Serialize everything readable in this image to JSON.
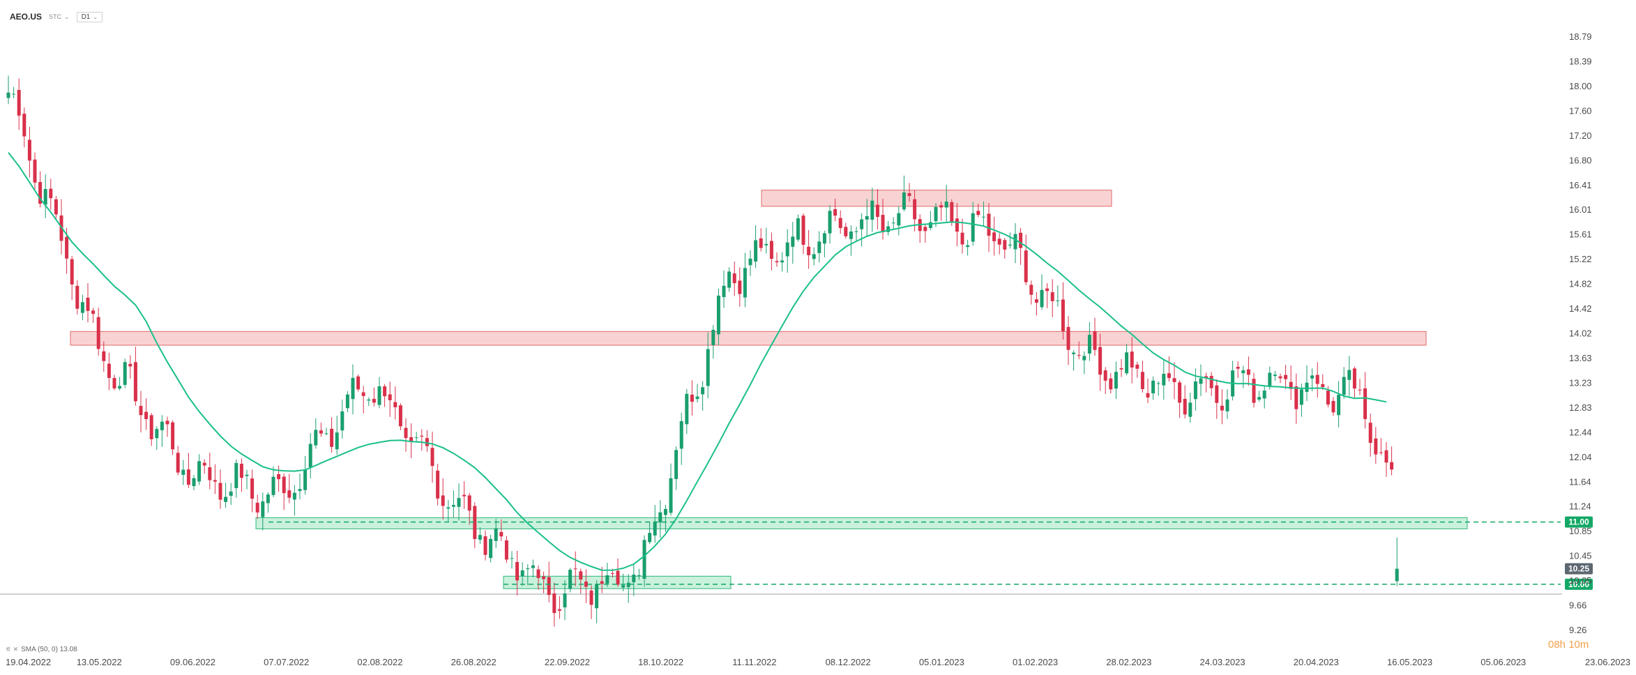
{
  "toolbar": {
    "symbol": "AEO.US",
    "instrument_type": "STC",
    "timeframe": "D1"
  },
  "indicator": {
    "label": "SMA (50, 0) 13.08"
  },
  "countdown": {
    "hours": "08h",
    "minutes": "10m"
  },
  "colors": {
    "up": "#1a9e6e",
    "down": "#d9304a",
    "sma": "#1abf8a",
    "resistance_fill": "#f9d3d3",
    "resistance_stroke": "#e16a6a",
    "support_fill": "#c9f1dc",
    "support_stroke": "#30b67b",
    "last_price_tag": "#5d6770",
    "level_tag": "#13a866"
  },
  "chart_data": {
    "type": "candlestick",
    "title": "",
    "y_axis": {
      "ticks": [
        "18.79",
        "18.39",
        "18.00",
        "17.60",
        "17.20",
        "16.80",
        "16.41",
        "16.01",
        "15.61",
        "15.22",
        "14.82",
        "14.42",
        "14.02",
        "13.63",
        "13.23",
        "12.83",
        "12.44",
        "12.04",
        "11.64",
        "11.24",
        "10.85",
        "10.45",
        "10.05",
        "9.66",
        "9.26"
      ],
      "ylim": [
        9.26,
        18.79
      ]
    },
    "x_axis": {
      "ticks": [
        "19.04.2022",
        "13.05.2022",
        "09.06.2022",
        "07.07.2022",
        "02.08.2022",
        "26.08.2022",
        "22.09.2022",
        "18.10.2022",
        "11.11.2022",
        "08.12.2022",
        "05.01.2023",
        "01.02.2023",
        "28.02.2023",
        "24.03.2023",
        "20.04.2023",
        "16.05.2023",
        "05.06.2023",
        "23.06.2023"
      ]
    },
    "series": [
      {
        "name": "SMA (50, 0)",
        "last_value": 13.08
      }
    ],
    "price_anchors": [
      {
        "date": "2022-04-19",
        "close": 17.9
      },
      {
        "date": "2022-05-13",
        "close": 13.8
      },
      {
        "date": "2022-06-09",
        "close": 11.8
      },
      {
        "date": "2022-07-07",
        "close": 11.4
      },
      {
        "date": "2022-08-02",
        "close": 13.3
      },
      {
        "date": "2022-08-26",
        "close": 11.2
      },
      {
        "date": "2022-09-22",
        "close": 9.85
      },
      {
        "date": "2022-10-18",
        "close": 10.2
      },
      {
        "date": "2022-11-11",
        "close": 15.0
      },
      {
        "date": "2022-12-08",
        "close": 15.7
      },
      {
        "date": "2023-01-05",
        "close": 15.9
      },
      {
        "date": "2023-02-01",
        "close": 15.6
      },
      {
        "date": "2023-02-28",
        "close": 13.6
      },
      {
        "date": "2023-03-24",
        "close": 13.1
      },
      {
        "date": "2023-04-20",
        "close": 13.3
      },
      {
        "date": "2023-05-16",
        "close": 13.0
      },
      {
        "date": "2023-05-25",
        "close": 11.6
      },
      {
        "date": "2023-05-26",
        "close": 10.25
      }
    ],
    "zones": [
      {
        "kind": "resistance",
        "from": 16.07,
        "to": 16.33
      },
      {
        "kind": "resistance",
        "from": 13.84,
        "to": 14.06
      },
      {
        "kind": "support",
        "from": 10.89,
        "to": 11.07
      },
      {
        "kind": "support",
        "from": 9.93,
        "to": 10.13
      }
    ],
    "levels": [
      {
        "label": "11.00",
        "value": 11.0,
        "style": "dashed"
      },
      {
        "label": "10.00",
        "value": 10.0,
        "style": "dashed"
      }
    ],
    "last_price": {
      "label": "10.25",
      "value": 10.25
    },
    "grid": false,
    "legend": "none"
  }
}
